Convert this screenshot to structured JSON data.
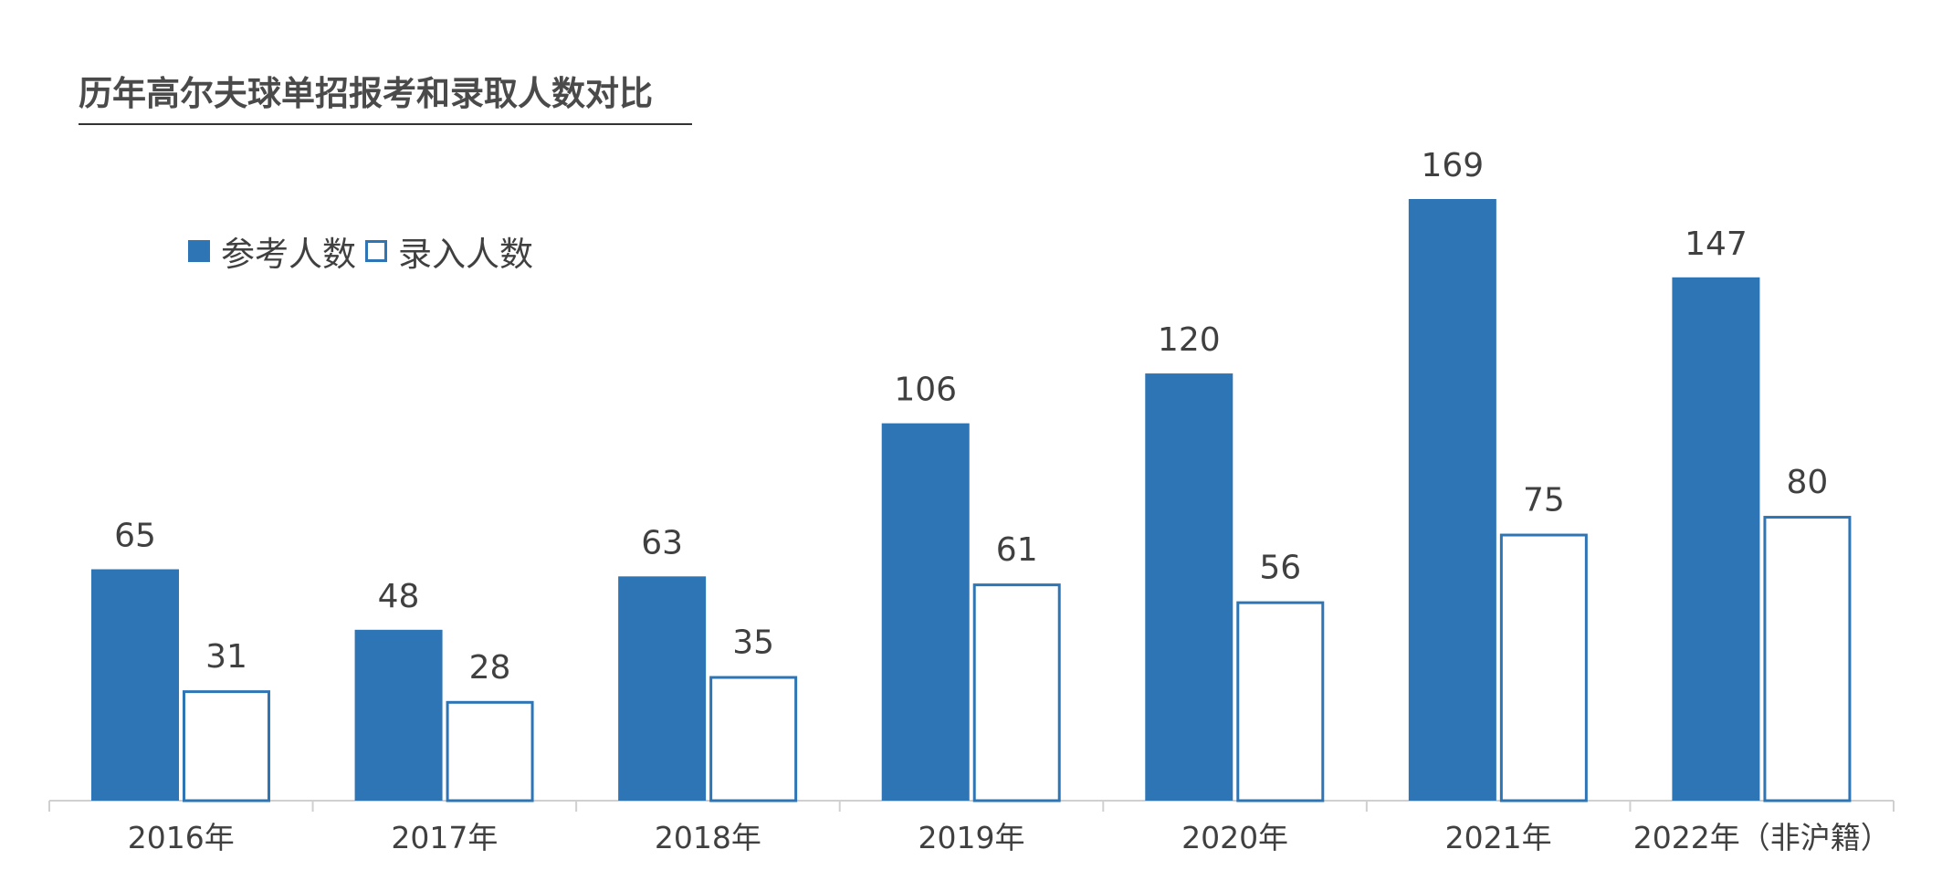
{
  "chart_data": {
    "type": "bar",
    "title": "历年高尔夫球单招报考和录取人数对比",
    "categories": [
      "2016年",
      "2017年",
      "2018年",
      "2019年",
      "2020年",
      "2021年",
      "2022年（非沪籍）"
    ],
    "series": [
      {
        "name": "参考人数",
        "values": [
          65,
          48,
          63,
          106,
          120,
          169,
          147
        ],
        "color": "#2e75b6",
        "style": "filled"
      },
      {
        "name": "录入人数",
        "values": [
          31,
          28,
          35,
          61,
          56,
          75,
          80
        ],
        "color": "#2e75b6",
        "style": "outline"
      }
    ],
    "legend_position": "top-left",
    "grid": false,
    "ylim": [
      0,
      169
    ]
  }
}
